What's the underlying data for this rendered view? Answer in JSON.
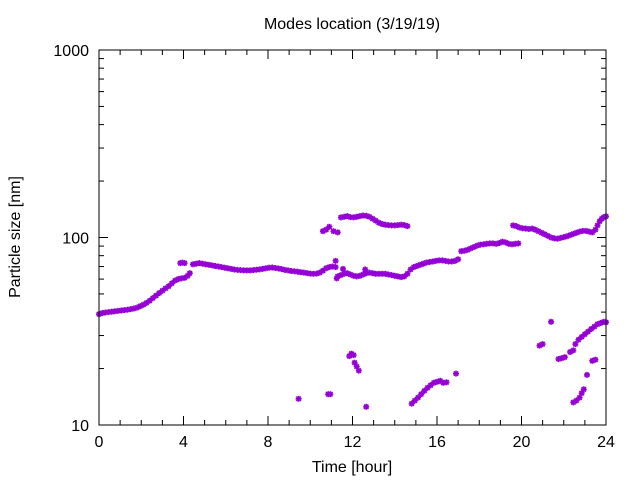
{
  "chart_data": {
    "type": "scatter",
    "title": "Modes location (3/19/19)",
    "xlabel": "Time [hour]",
    "ylabel": "Particle size [nm]",
    "xlim": [
      0,
      24
    ],
    "ylim": [
      10,
      1000
    ],
    "yscale": "log",
    "grid": false,
    "legend": "none",
    "x_ticks": [
      0,
      4,
      8,
      12,
      16,
      20,
      24
    ],
    "x_tick_labels": [
      "0",
      "4",
      "8",
      "12",
      "16",
      "20",
      "24"
    ],
    "y_ticks": [
      10,
      100,
      1000
    ],
    "y_tick_labels": [
      "10",
      "100",
      "1000"
    ],
    "marker_color": "#9400d3",
    "series": [
      {
        "points": [
          [
            0.0,
            39.0
          ],
          [
            0.15,
            39.5
          ],
          [
            0.3,
            39.8
          ],
          [
            0.45,
            40.0
          ],
          [
            0.6,
            40.2
          ],
          [
            0.75,
            40.4
          ],
          [
            0.9,
            40.6
          ],
          [
            1.05,
            40.8
          ],
          [
            1.2,
            41.0
          ],
          [
            1.35,
            41.2
          ],
          [
            1.5,
            41.5
          ],
          [
            1.65,
            41.8
          ],
          [
            1.8,
            42.3
          ],
          [
            1.95,
            43.0
          ],
          [
            2.1,
            43.8
          ],
          [
            2.25,
            44.8
          ],
          [
            2.4,
            46.0
          ],
          [
            2.55,
            47.5
          ],
          [
            2.7,
            49.0
          ],
          [
            2.85,
            50.5
          ],
          [
            3.0,
            52.0
          ],
          [
            3.15,
            53.5
          ],
          [
            3.3,
            55.0
          ],
          [
            3.45,
            57.0
          ],
          [
            3.6,
            59.0
          ],
          [
            3.75,
            60.0
          ],
          [
            3.9,
            60.5
          ],
          [
            4.05,
            61.0
          ],
          [
            4.2,
            62.5
          ],
          [
            4.3,
            64.5
          ],
          [
            3.85,
            73.0
          ],
          [
            3.95,
            73.5
          ],
          [
            4.05,
            73.0
          ],
          [
            4.45,
            72.0
          ],
          [
            4.6,
            72.5
          ],
          [
            4.75,
            73.0
          ],
          [
            4.9,
            72.5
          ],
          [
            5.05,
            72.0
          ],
          [
            5.2,
            71.5
          ],
          [
            5.35,
            71.0
          ],
          [
            5.5,
            70.5
          ],
          [
            5.65,
            70.0
          ],
          [
            5.8,
            69.5
          ],
          [
            5.95,
            69.0
          ],
          [
            6.1,
            68.5
          ],
          [
            6.25,
            68.0
          ],
          [
            6.4,
            67.5
          ],
          [
            6.55,
            67.2
          ],
          [
            6.7,
            67.0
          ],
          [
            6.85,
            66.8
          ],
          [
            7.0,
            66.8
          ],
          [
            7.15,
            66.8
          ],
          [
            7.3,
            67.0
          ],
          [
            7.45,
            67.3
          ],
          [
            7.6,
            67.6
          ],
          [
            7.75,
            68.0
          ],
          [
            7.9,
            68.5
          ],
          [
            8.05,
            69.0
          ],
          [
            8.2,
            69.2
          ],
          [
            8.35,
            68.8
          ],
          [
            8.5,
            68.3
          ],
          [
            8.65,
            67.8
          ],
          [
            8.8,
            67.2
          ],
          [
            8.95,
            66.8
          ],
          [
            9.1,
            66.3
          ],
          [
            9.25,
            66.0
          ],
          [
            9.4,
            65.7
          ],
          [
            9.55,
            65.3
          ],
          [
            9.7,
            65.0
          ],
          [
            9.85,
            64.6
          ],
          [
            10.0,
            64.2
          ],
          [
            10.15,
            64.0
          ],
          [
            10.3,
            64.2
          ],
          [
            10.45,
            65.0
          ],
          [
            10.6,
            66.5
          ],
          [
            10.75,
            68.5
          ],
          [
            10.9,
            69.5
          ],
          [
            11.05,
            70.0
          ],
          [
            11.2,
            69.5
          ],
          [
            11.3,
            62.0
          ],
          [
            11.45,
            63.0
          ],
          [
            11.6,
            64.0
          ],
          [
            11.75,
            64.5
          ],
          [
            11.9,
            63.5
          ],
          [
            12.05,
            62.5
          ],
          [
            12.2,
            62.0
          ],
          [
            12.35,
            62.5
          ],
          [
            12.5,
            63.5
          ],
          [
            12.65,
            64.5
          ],
          [
            12.8,
            65.0
          ],
          [
            12.95,
            64.5
          ],
          [
            13.1,
            64.0
          ],
          [
            13.25,
            64.0
          ],
          [
            13.4,
            64.0
          ],
          [
            13.55,
            64.0
          ],
          [
            13.7,
            63.5
          ],
          [
            13.85,
            63.0
          ],
          [
            14.0,
            62.5
          ],
          [
            14.15,
            62.0
          ],
          [
            14.3,
            61.5
          ],
          [
            14.45,
            62.0
          ],
          [
            11.25,
            60.5
          ],
          [
            11.55,
            68.0
          ],
          [
            12.6,
            67.5
          ],
          [
            11.2,
            75.0
          ],
          [
            14.6,
            64.0
          ],
          [
            14.75,
            67.5
          ],
          [
            14.9,
            69.5
          ],
          [
            15.05,
            70.5
          ],
          [
            15.2,
            71.5
          ],
          [
            15.35,
            72.5
          ],
          [
            15.5,
            73.5
          ],
          [
            15.65,
            74.0
          ],
          [
            15.8,
            74.5
          ],
          [
            15.95,
            75.0
          ],
          [
            16.1,
            75.5
          ],
          [
            16.25,
            75.5
          ],
          [
            16.4,
            75.0
          ],
          [
            16.55,
            74.5
          ],
          [
            16.7,
            74.5
          ],
          [
            16.85,
            75.0
          ],
          [
            17.0,
            76.5
          ],
          [
            17.15,
            84.5
          ],
          [
            17.3,
            85.0
          ],
          [
            17.45,
            86.0
          ],
          [
            17.6,
            87.5
          ],
          [
            17.75,
            89.0
          ],
          [
            17.9,
            90.5
          ],
          [
            18.05,
            91.5
          ],
          [
            18.2,
            92.0
          ],
          [
            18.35,
            92.5
          ],
          [
            18.5,
            93.0
          ],
          [
            18.65,
            93.0
          ],
          [
            18.8,
            92.5
          ],
          [
            18.95,
            93.5
          ],
          [
            19.1,
            95.0
          ],
          [
            19.25,
            94.0
          ],
          [
            19.4,
            92.5
          ],
          [
            19.55,
            92.0
          ],
          [
            19.7,
            92.5
          ],
          [
            19.85,
            93.0
          ],
          [
            10.6,
            108.0
          ],
          [
            10.75,
            110.0
          ],
          [
            10.9,
            114.0
          ],
          [
            11.1,
            108.0
          ],
          [
            11.3,
            106.5
          ],
          [
            11.45,
            128.0
          ],
          [
            11.6,
            129.0
          ],
          [
            11.75,
            130.0
          ],
          [
            11.9,
            128.5
          ],
          [
            12.05,
            128.0
          ],
          [
            12.2,
            129.0
          ],
          [
            12.35,
            130.0
          ],
          [
            12.5,
            131.0
          ],
          [
            12.65,
            130.5
          ],
          [
            12.8,
            129.0
          ],
          [
            12.95,
            126.0
          ],
          [
            13.1,
            123.0
          ],
          [
            13.25,
            120.0
          ],
          [
            13.4,
            118.0
          ],
          [
            13.55,
            117.0
          ],
          [
            13.7,
            116.5
          ],
          [
            13.85,
            116.0
          ],
          [
            14.0,
            116.0
          ],
          [
            14.15,
            116.5
          ],
          [
            14.3,
            117.0
          ],
          [
            14.45,
            116.5
          ],
          [
            14.6,
            115.0
          ],
          [
            19.6,
            116.0
          ],
          [
            19.75,
            115.0
          ],
          [
            19.9,
            113.0
          ],
          [
            20.05,
            112.0
          ],
          [
            20.2,
            111.5
          ],
          [
            20.35,
            111.0
          ],
          [
            20.5,
            111.5
          ],
          [
            20.65,
            110.0
          ],
          [
            20.8,
            108.0
          ],
          [
            20.95,
            106.0
          ],
          [
            21.1,
            104.0
          ],
          [
            21.25,
            102.0
          ],
          [
            21.4,
            100.0
          ],
          [
            21.55,
            99.0
          ],
          [
            21.7,
            98.5
          ],
          [
            21.85,
            99.5
          ],
          [
            22.0,
            100.5
          ],
          [
            22.15,
            101.5
          ],
          [
            22.3,
            103.0
          ],
          [
            22.45,
            104.5
          ],
          [
            22.6,
            106.0
          ],
          [
            22.75,
            107.5
          ],
          [
            22.9,
            108.5
          ],
          [
            23.05,
            108.5
          ],
          [
            23.2,
            107.5
          ],
          [
            23.35,
            106.5
          ],
          [
            23.5,
            110.0
          ],
          [
            23.6,
            116.0
          ],
          [
            23.7,
            122.0
          ],
          [
            23.8,
            126.0
          ],
          [
            23.9,
            128.5
          ],
          [
            24.0,
            129.5
          ],
          [
            9.45,
            13.8
          ],
          [
            10.85,
            14.6
          ],
          [
            10.95,
            14.6
          ],
          [
            11.85,
            23.3
          ],
          [
            11.95,
            24.0
          ],
          [
            12.05,
            23.6
          ],
          [
            12.1,
            21.5
          ],
          [
            12.2,
            20.5
          ],
          [
            12.3,
            19.5
          ],
          [
            12.65,
            12.5
          ],
          [
            14.8,
            13.0
          ],
          [
            14.95,
            13.5
          ],
          [
            15.1,
            14.0
          ],
          [
            15.25,
            14.6
          ],
          [
            15.4,
            15.2
          ],
          [
            15.55,
            15.8
          ],
          [
            15.7,
            16.3
          ],
          [
            15.85,
            16.8
          ],
          [
            16.0,
            17.0
          ],
          [
            16.15,
            17.2
          ],
          [
            16.3,
            16.8
          ],
          [
            16.45,
            16.9
          ],
          [
            16.9,
            18.8
          ],
          [
            20.85,
            26.5
          ],
          [
            21.0,
            27.0
          ],
          [
            21.4,
            35.5
          ],
          [
            21.75,
            22.5
          ],
          [
            21.9,
            22.7
          ],
          [
            22.05,
            23.0
          ],
          [
            22.3,
            24.5
          ],
          [
            22.45,
            25.0
          ],
          [
            22.55,
            27.0
          ],
          [
            22.7,
            28.5
          ],
          [
            22.85,
            29.5
          ],
          [
            23.0,
            30.5
          ],
          [
            23.15,
            31.5
          ],
          [
            23.3,
            32.5
          ],
          [
            23.45,
            33.5
          ],
          [
            23.6,
            34.5
          ],
          [
            23.75,
            35.0
          ],
          [
            23.9,
            35.5
          ],
          [
            24.0,
            35.3
          ],
          [
            22.45,
            13.2
          ],
          [
            22.6,
            13.5
          ],
          [
            22.75,
            14.0
          ],
          [
            22.85,
            14.8
          ],
          [
            22.95,
            15.5
          ],
          [
            23.1,
            18.5
          ],
          [
            23.35,
            22.0
          ],
          [
            23.5,
            22.3
          ]
        ]
      }
    ]
  }
}
